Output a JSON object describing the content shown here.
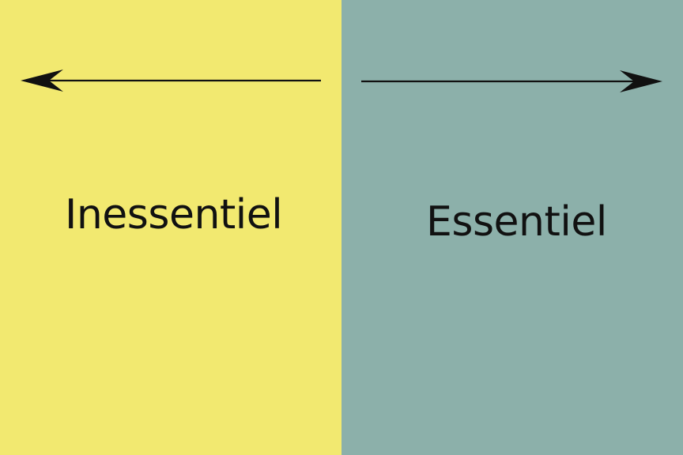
{
  "colors": {
    "left_panel": "#f2e970",
    "right_panel": "#8cb0aa",
    "arrow": "#111111",
    "text": "#111111"
  },
  "left": {
    "label": "Inessentiel",
    "arrow_direction": "left"
  },
  "right": {
    "label": "Essentiel",
    "arrow_direction": "right"
  }
}
